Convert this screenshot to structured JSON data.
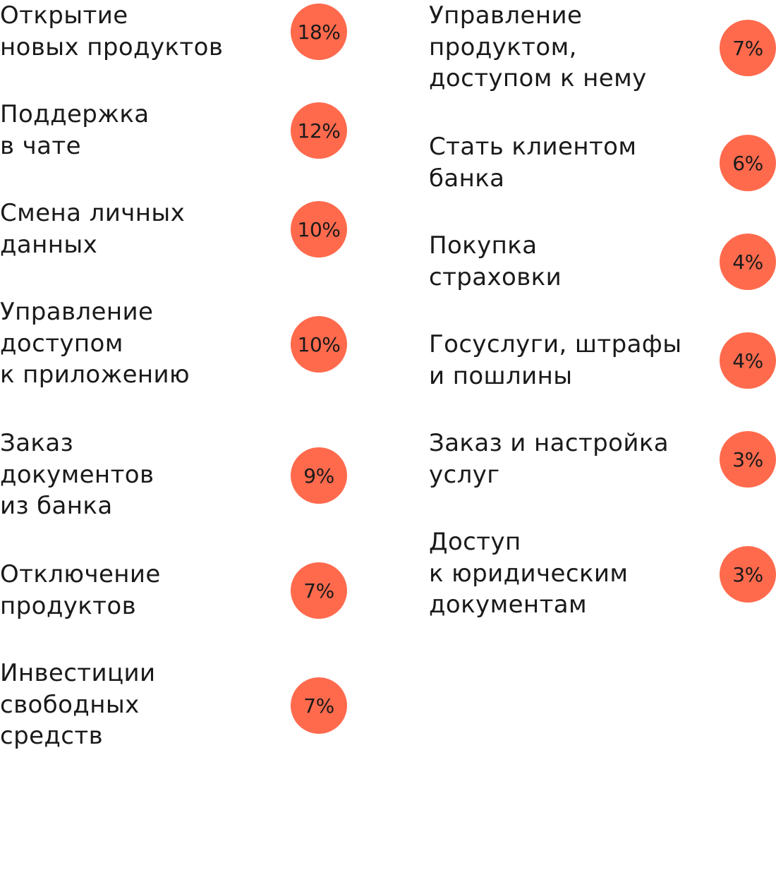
{
  "colors": {
    "badge": "#FF6A4D",
    "text": "#1A1A1A",
    "background": "#FFFFFF"
  },
  "items": [
    {
      "label_lines": [
        "Открытие",
        "новых продуктов"
      ],
      "value": "18%"
    },
    {
      "label_lines": [
        "Поддержка",
        "в чате"
      ],
      "value": "12%"
    },
    {
      "label_lines": [
        "Смена личных",
        "данных"
      ],
      "value": "10%"
    },
    {
      "label_lines": [
        "Управление",
        "доступом",
        "к приложению"
      ],
      "value": "10%"
    },
    {
      "label_lines": [
        "Заказ",
        "документов",
        "из банка"
      ],
      "value": "9%"
    },
    {
      "label_lines": [
        "Отключение",
        "продуктов"
      ],
      "value": "7%"
    },
    {
      "label_lines": [
        "Инвестиции",
        "свободных",
        "средств"
      ],
      "value": "7%"
    },
    {
      "label_lines": [
        "Управление",
        "продуктом,",
        "доступом к нему"
      ],
      "value": "7%"
    },
    {
      "label_lines": [
        "Стать клиентом",
        "банка"
      ],
      "value": "6%"
    },
    {
      "label_lines": [
        "Покупка",
        "страховки"
      ],
      "value": "4%"
    },
    {
      "label_lines": [
        "Госуслуги, штрафы",
        "и пошлины"
      ],
      "value": "4%"
    },
    {
      "label_lines": [
        "Заказ и настройка",
        "услуг"
      ],
      "value": "3%"
    },
    {
      "label_lines": [
        "Доступ",
        "к юридическим",
        "документам"
      ],
      "value": "3%"
    }
  ]
}
